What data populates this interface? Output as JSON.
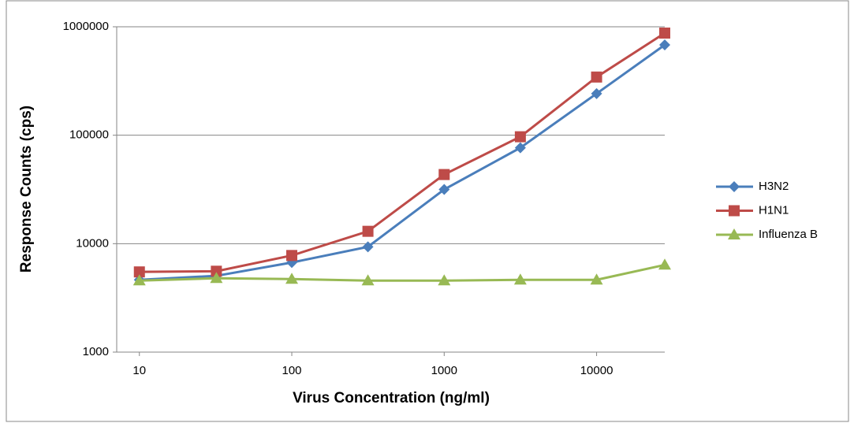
{
  "chart_data": {
    "type": "line",
    "xlabel": "Virus Concentration (ng/ml)",
    "ylabel": "Response Counts (cps)",
    "x": [
      10,
      32,
      100,
      316,
      1000,
      3160,
      10000,
      28000
    ],
    "series": [
      {
        "name": "H3N2",
        "color": "#4a7ebb",
        "marker": "diamond",
        "values": [
          4640,
          5050,
          6700,
          9350,
          31600,
          76600,
          242000,
          681000
        ]
      },
      {
        "name": "H1N1",
        "color": "#be4b48",
        "marker": "square",
        "values": [
          5490,
          5570,
          7780,
          13000,
          43400,
          96800,
          344000,
          875000
        ]
      },
      {
        "name": "Influenza B",
        "color": "#98b954",
        "marker": "triangle",
        "values": [
          4560,
          4800,
          4720,
          4560,
          4560,
          4640,
          4640,
          6370
        ]
      }
    ],
    "xscale": "log",
    "yscale": "log",
    "xlim": [
      7.1,
      28000
    ],
    "ylim": [
      1000,
      1000000
    ],
    "xticks": [
      10,
      100,
      1000,
      10000
    ],
    "yticks": [
      1000,
      10000,
      100000,
      1000000
    ],
    "grid": true,
    "legend": "right"
  }
}
